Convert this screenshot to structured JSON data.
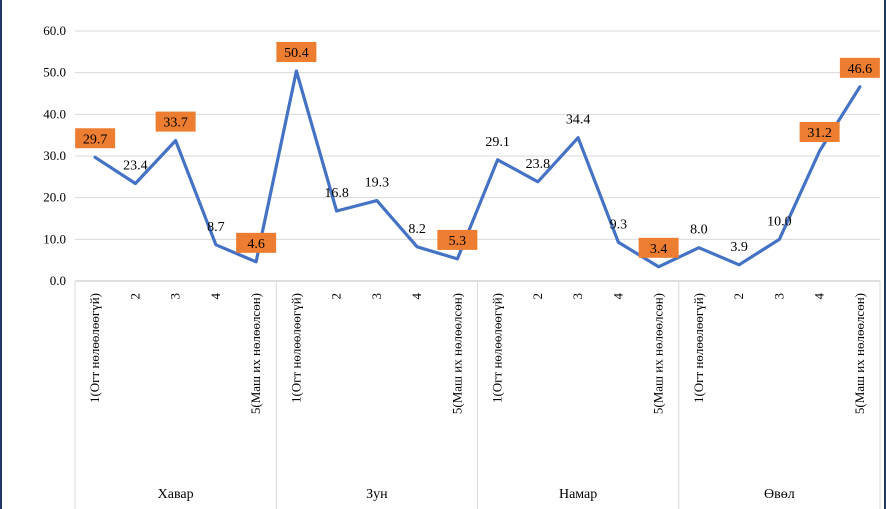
{
  "chart_data": {
    "type": "line",
    "title": "",
    "xlabel": "",
    "ylabel": "",
    "ylim": [
      0,
      60
    ],
    "yticks": [
      "0.0",
      "10.0",
      "20.0",
      "30.0",
      "40.0",
      "50.0",
      "60.0"
    ],
    "grid": true,
    "legend": "none",
    "line_color": "#4472c4",
    "highlight_color": "#ed7d31",
    "groups": [
      "Хавар",
      "Зун",
      "Намар",
      "Өвөл"
    ],
    "categories": [
      "1(Огт нөлөөлөөгүй)",
      "2",
      "3",
      "4",
      "5(Маш их нөлөөлсөн)"
    ],
    "x": [
      "Хавар 1(Огт нөлөөлөөгүй)",
      "Хавар 2",
      "Хавар 3",
      "Хавар 4",
      "Хавар 5(Маш их нөлөөлсөн)",
      "Зун 1(Огт нөлөөлөөгүй)",
      "Зун 2",
      "Зун 3",
      "Зун 4",
      "Зун 5(Маш их нөлөөлсөн)",
      "Намар 1(Огт нөлөөлөөгүй)",
      "Намар 2",
      "Намар 3",
      "Намар 4",
      "Намар 5(Маш их нөлөөлсөн)",
      "Өвөл 1(Огт нөлөөлөөгүй)",
      "Өвөл 2",
      "Өвөл 3",
      "Өвөл 4",
      "Өвөл 5(Маш их нөлөөлсөн)"
    ],
    "values": [
      29.7,
      23.4,
      33.7,
      8.7,
      4.6,
      50.4,
      16.8,
      19.3,
      8.2,
      5.3,
      29.1,
      23.8,
      34.4,
      9.3,
      3.4,
      8.0,
      3.9,
      10.0,
      31.2,
      46.6
    ],
    "labels": [
      "29.7",
      "23.4",
      "33.7",
      "8.7",
      "4.6",
      "50.4",
      "16.8",
      "19.3",
      "8.2",
      "5.3",
      "29.1",
      "23.8",
      "34.4",
      "9.3",
      "3.4",
      "8.0",
      "3.9",
      "10.0",
      "31.2",
      "46.6"
    ],
    "highlighted": [
      true,
      false,
      true,
      false,
      true,
      true,
      false,
      false,
      false,
      true,
      false,
      false,
      false,
      false,
      true,
      false,
      false,
      false,
      true,
      true
    ]
  }
}
